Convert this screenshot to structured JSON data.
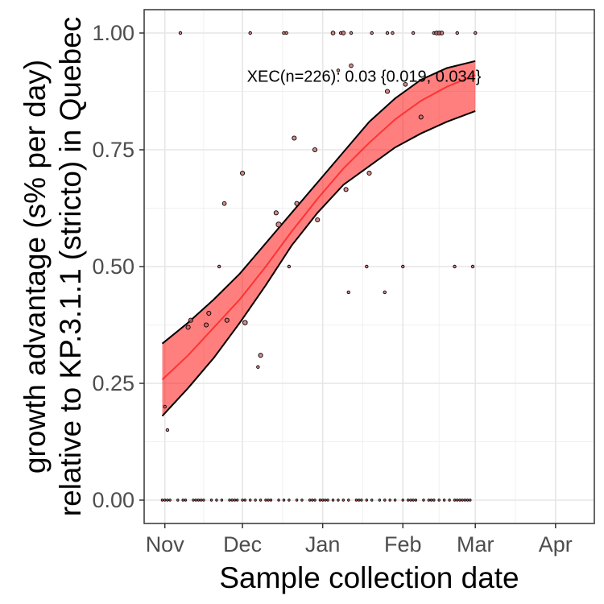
{
  "chart_data": {
    "type": "scatter",
    "xlabel": "Sample collection date",
    "ylabel_lines": [
      "growth advantage (s% per day)",
      "relative to KP.3.1.1 (stricto) in Quebec"
    ],
    "x_ticks": [
      {
        "label": "Nov",
        "date": "2024-11-01"
      },
      {
        "label": "Dec",
        "date": "2024-12-01"
      },
      {
        "label": "Jan",
        "date": "2025-01-01"
      },
      {
        "label": "Feb",
        "date": "2025-02-01"
      },
      {
        "label": "Mar",
        "date": "2025-03-01"
      },
      {
        "label": "Apr",
        "date": "2025-04-01"
      }
    ],
    "x_range": [
      "2024-10-24",
      "2025-04-16"
    ],
    "y_ticks": [
      {
        "label": "0.00",
        "value": 0
      },
      {
        "label": "0.25",
        "value": 0.25
      },
      {
        "label": "0.50",
        "value": 0.5
      },
      {
        "label": "0.75",
        "value": 0.75
      },
      {
        "label": "1.00",
        "value": 1
      }
    ],
    "ylim": [
      -0.05,
      1.05
    ],
    "grid": true,
    "annotation": {
      "text": "XEC(n=226): 0.03 {0.019, 0.034}",
      "date": "2025-01-17",
      "value": 0.905
    },
    "fit": {
      "color": "#ff0000",
      "points": [
        {
          "date": "2024-10-31",
          "value": 0.258,
          "lower": 0.18,
          "upper": 0.335
        },
        {
          "date": "2024-11-10",
          "value": 0.31,
          "lower": 0.24,
          "upper": 0.38
        },
        {
          "date": "2024-11-20",
          "value": 0.37,
          "lower": 0.305,
          "upper": 0.43
        },
        {
          "date": "2024-11-30",
          "value": 0.43,
          "lower": 0.38,
          "upper": 0.485
        },
        {
          "date": "2024-12-10",
          "value": 0.5,
          "lower": 0.46,
          "upper": 0.55
        },
        {
          "date": "2024-12-20",
          "value": 0.575,
          "lower": 0.545,
          "upper": 0.615
        },
        {
          "date": "2024-12-30",
          "value": 0.645,
          "lower": 0.615,
          "upper": 0.68
        },
        {
          "date": "2025-01-09",
          "value": 0.71,
          "lower": 0.675,
          "upper": 0.745
        },
        {
          "date": "2025-01-19",
          "value": 0.765,
          "lower": 0.715,
          "upper": 0.81
        },
        {
          "date": "2025-01-29",
          "value": 0.815,
          "lower": 0.755,
          "upper": 0.86
        },
        {
          "date": "2025-02-08",
          "value": 0.855,
          "lower": 0.785,
          "upper": 0.9
        },
        {
          "date": "2025-02-18",
          "value": 0.885,
          "lower": 0.81,
          "upper": 0.925
        },
        {
          "date": "2025-03-01",
          "value": 0.91,
          "lower": 0.833,
          "upper": 0.94
        }
      ]
    },
    "points": [
      {
        "date": "2024-11-01",
        "value": 0.2,
        "n": 1
      },
      {
        "date": "2024-11-02",
        "value": 0.15,
        "n": 1
      },
      {
        "date": "2024-11-07",
        "value": 1,
        "n": 1
      },
      {
        "date": "2024-11-10",
        "value": 0.37,
        "n": 4
      },
      {
        "date": "2024-11-11",
        "value": 0.385,
        "n": 4
      },
      {
        "date": "2024-11-17",
        "value": 0.375,
        "n": 4
      },
      {
        "date": "2024-11-18",
        "value": 0.4,
        "n": 4
      },
      {
        "date": "2024-11-22",
        "value": 0.5,
        "n": 1
      },
      {
        "date": "2024-11-24",
        "value": 0.635,
        "n": 3
      },
      {
        "date": "2024-11-25",
        "value": 0.385,
        "n": 4
      },
      {
        "date": "2024-12-01",
        "value": 0.7,
        "n": 4
      },
      {
        "date": "2024-12-02",
        "value": 0.38,
        "n": 5
      },
      {
        "date": "2024-12-04",
        "value": 1,
        "n": 1
      },
      {
        "date": "2024-12-07",
        "value": 0.285,
        "n": 1
      },
      {
        "date": "2024-12-08",
        "value": 0.31,
        "n": 4
      },
      {
        "date": "2024-12-14",
        "value": 0.615,
        "n": 4
      },
      {
        "date": "2024-12-15",
        "value": 0.59,
        "n": 7
      },
      {
        "date": "2024-12-17",
        "value": 1,
        "n": 1
      },
      {
        "date": "2024-12-18",
        "value": 1,
        "n": 1
      },
      {
        "date": "2024-12-19",
        "value": 0.5,
        "n": 1
      },
      {
        "date": "2024-12-21",
        "value": 0.775,
        "n": 4
      },
      {
        "date": "2024-12-22",
        "value": 0.635,
        "n": 4
      },
      {
        "date": "2024-12-29",
        "value": 0.75,
        "n": 4
      },
      {
        "date": "2024-12-30",
        "value": 0.6,
        "n": 4
      },
      {
        "date": "2025-01-05",
        "value": 1,
        "n": 3
      },
      {
        "date": "2025-01-07",
        "value": 0.92,
        "n": 1
      },
      {
        "date": "2025-01-08",
        "value": 1,
        "n": 1
      },
      {
        "date": "2025-01-09",
        "value": 1,
        "n": 3
      },
      {
        "date": "2025-01-10",
        "value": 0.665,
        "n": 4
      },
      {
        "date": "2025-01-11",
        "value": 0.445,
        "n": 1
      },
      {
        "date": "2025-01-12",
        "value": 1,
        "n": 1
      },
      {
        "date": "2025-01-12",
        "value": 0.93,
        "n": 3
      },
      {
        "date": "2025-01-18",
        "value": 0.5,
        "n": 1
      },
      {
        "date": "2025-01-19",
        "value": 0.7,
        "n": 4
      },
      {
        "date": "2025-01-20",
        "value": 1,
        "n": 1
      },
      {
        "date": "2025-01-25",
        "value": 0.445,
        "n": 1
      },
      {
        "date": "2025-01-26",
        "value": 0.875,
        "n": 4
      },
      {
        "date": "2025-01-26",
        "value": 1,
        "n": 1
      },
      {
        "date": "2025-01-28",
        "value": 1,
        "n": 1
      },
      {
        "date": "2025-02-01",
        "value": 0.5,
        "n": 1
      },
      {
        "date": "2025-02-02",
        "value": 0.89,
        "n": 3
      },
      {
        "date": "2025-02-05",
        "value": 1,
        "n": 1
      },
      {
        "date": "2025-02-08",
        "value": 0.82,
        "n": 4
      },
      {
        "date": "2025-02-13",
        "value": 1,
        "n": 1
      },
      {
        "date": "2025-02-14",
        "value": 1,
        "n": 3
      },
      {
        "date": "2025-02-15",
        "value": 1,
        "n": 3
      },
      {
        "date": "2025-02-16",
        "value": 1,
        "n": 3
      },
      {
        "date": "2025-02-21",
        "value": 0.5,
        "n": 1
      },
      {
        "date": "2025-02-22",
        "value": 1,
        "n": 1
      },
      {
        "date": "2025-02-28",
        "value": 0.5,
        "n": 1
      },
      {
        "date": "2025-03-01",
        "value": 1,
        "n": 1
      }
    ],
    "zero_dates": [
      "2024-10-31",
      "2024-11-01",
      "2024-11-02",
      "2024-11-03",
      "2024-11-06",
      "2024-11-08",
      "2024-11-09",
      "2024-11-12",
      "2024-11-13",
      "2024-11-14",
      "2024-11-15",
      "2024-11-16",
      "2024-11-19",
      "2024-11-21",
      "2024-11-23",
      "2024-11-26",
      "2024-11-27",
      "2024-11-28",
      "2024-11-29",
      "2024-12-01",
      "2024-12-02",
      "2024-12-04",
      "2024-12-06",
      "2024-12-08",
      "2024-12-10",
      "2024-12-11",
      "2024-12-12",
      "2024-12-15",
      "2024-12-17",
      "2024-12-19",
      "2024-12-22",
      "2024-12-24",
      "2024-12-27",
      "2024-12-28",
      "2024-12-29",
      "2024-12-31",
      "2025-01-01",
      "2025-01-02",
      "2025-01-03",
      "2025-01-05",
      "2025-01-07",
      "2025-01-09",
      "2025-01-11",
      "2025-01-14",
      "2025-01-15",
      "2025-01-16",
      "2025-01-18",
      "2025-01-20",
      "2025-01-23",
      "2025-01-25",
      "2025-01-27",
      "2025-01-29",
      "2025-02-01",
      "2025-02-03",
      "2025-02-04",
      "2025-02-05",
      "2025-02-06",
      "2025-02-09",
      "2025-02-11",
      "2025-02-12",
      "2025-02-13",
      "2025-02-15",
      "2025-02-17",
      "2025-02-19",
      "2025-02-21",
      "2025-02-22",
      "2025-02-23",
      "2025-02-24",
      "2025-02-25",
      "2025-02-26",
      "2025-02-27"
    ]
  }
}
